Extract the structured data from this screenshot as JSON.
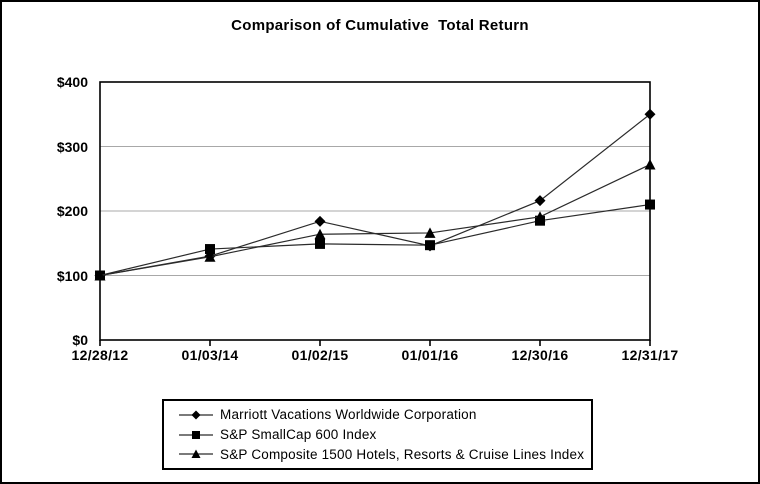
{
  "window": {
    "background_color": "#ffffff",
    "border_color": "#000000"
  },
  "chart_data": {
    "type": "line",
    "title": "Comparison of Cumulative  Total Return",
    "categories": [
      "12/28/12",
      "01/03/14",
      "01/02/15",
      "01/01/16",
      "12/30/16",
      "12/31/17"
    ],
    "series": [
      {
        "name": "Marriott Vacations Worldwide Corporation",
        "marker": "diamond",
        "values": [
          100,
          130,
          184,
          146,
          216,
          350
        ]
      },
      {
        "name": "S&P SmallCap 600 Index",
        "marker": "square",
        "values": [
          100,
          141,
          149,
          147,
          185,
          210
        ]
      },
      {
        "name": "S&P Composite 1500 Hotels, Resorts & Cruise Lines Index",
        "marker": "triangle",
        "values": [
          100,
          129,
          164,
          166,
          191,
          272
        ]
      }
    ],
    "ylim": [
      0,
      400
    ],
    "yticks": [
      0,
      100,
      200,
      300,
      400
    ],
    "y_tick_labels": [
      "$0",
      "$100",
      "$200",
      "$300",
      "$400"
    ],
    "x_tick_labels": [
      "12/28/12",
      "01/03/14",
      "01/02/15",
      "01/01/16",
      "12/30/16",
      "12/31/17"
    ],
    "grid": "horizontal",
    "legend_position": "bottom",
    "line_color": "#2b2b2b",
    "marker_color": "#000000",
    "grid_color": "#a8a8a8",
    "axis_color": "#000000"
  }
}
